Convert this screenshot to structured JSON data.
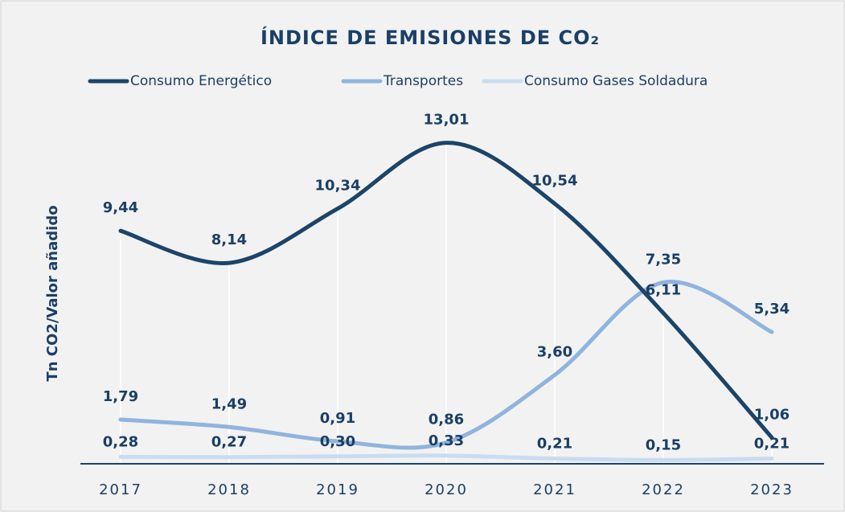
{
  "chart_data": {
    "type": "line",
    "title": "ÍNDICE DE EMISIONES DE CO₂",
    "y_label": "Tn CO2/Valor añadido",
    "categories": [
      "2017",
      "2018",
      "2019",
      "2020",
      "2021",
      "2022",
      "2023"
    ],
    "series": [
      {
        "name": "Consumo Energético",
        "color": "#1b4468",
        "values": [
          9.44,
          8.14,
          10.34,
          13.01,
          10.54,
          6.11,
          1.06
        ],
        "value_labels": [
          "9,44",
          "8,14",
          "10,34",
          "13,01",
          "10,54",
          "6,11",
          "1,06"
        ]
      },
      {
        "name": "Transportes",
        "color": "#8fb4de",
        "values": [
          1.79,
          1.49,
          0.91,
          0.86,
          3.6,
          7.35,
          5.34
        ],
        "value_labels": [
          "1,79",
          "1,49",
          "0,91",
          "0,86",
          "3,60",
          "7,35",
          "5,34"
        ]
      },
      {
        "name": "Consumo Gases Soldadura",
        "color": "#c9dcf0",
        "values": [
          0.28,
          0.27,
          0.3,
          0.33,
          0.21,
          0.15,
          0.21
        ],
        "value_labels": [
          "0,28",
          "0,27",
          "0,30",
          "0,33",
          "0,21",
          "0,15",
          "0,21"
        ]
      }
    ],
    "ylim": [
      0,
      14
    ]
  }
}
